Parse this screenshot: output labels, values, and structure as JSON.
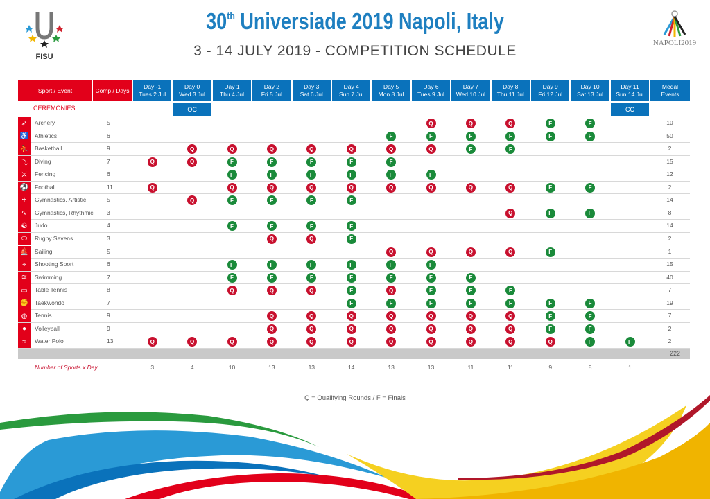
{
  "header": {
    "title_ordinal": "30",
    "title_suffix": "th",
    "title_rest": " Universiade 2019 Napoli, Italy",
    "subtitle": "3 - 14 JULY 2019 - COMPETITION SCHEDULE",
    "fisu_logo_text": "FISU",
    "napoli_logo_text": "NAPOLI2019"
  },
  "colors": {
    "red": "#e2001a",
    "blue": "#0a72bb",
    "qualifying": "#c8102e",
    "finals": "#1a8a3a"
  },
  "table": {
    "sport_header": "Sport / Event",
    "comp_header": "Comp / Days",
    "medal_header_line1": "Medal",
    "medal_header_line2": "Events",
    "days": [
      {
        "day": "Day -1",
        "date": "Tues 2 Jul"
      },
      {
        "day": "Day 0",
        "date": "Wed 3 Jul"
      },
      {
        "day": "Day 1",
        "date": "Thu 4 Jul"
      },
      {
        "day": "Day 2",
        "date": "Fri 5 Jul"
      },
      {
        "day": "Day 3",
        "date": "Sat 6 Jul"
      },
      {
        "day": "Day 4",
        "date": "Sun 7 Jul"
      },
      {
        "day": "Day 5",
        "date": "Mon 8 Jul"
      },
      {
        "day": "Day 6",
        "date": "Tues 9 Jul"
      },
      {
        "day": "Day 7",
        "date": "Wed 10 Jul"
      },
      {
        "day": "Day 8",
        "date": "Thu 11 Jul"
      },
      {
        "day": "Day 9",
        "date": "Fri 12 Jul"
      },
      {
        "day": "Day 10",
        "date": "Sat 13 Jul"
      },
      {
        "day": "Day 11",
        "date": "Sun 14 Jul"
      }
    ],
    "ceremonies": {
      "label": "CEREMONIES",
      "opening": {
        "label": "OC",
        "day_index": 1
      },
      "closing": {
        "label": "CC",
        "day_index": 12
      }
    },
    "sports": [
      {
        "name": "Archery",
        "icon": "archery-icon",
        "comp_days": "5",
        "medal_events": "10",
        "schedule": [
          "",
          "",
          "",
          "",
          "",
          "",
          "",
          "Q",
          "Q",
          "Q",
          "F",
          "F",
          ""
        ]
      },
      {
        "name": "Athletics",
        "icon": "athletics-icon",
        "comp_days": "6",
        "medal_events": "50",
        "schedule": [
          "",
          "",
          "",
          "",
          "",
          "",
          "F",
          "F",
          "F",
          "F",
          "F",
          "F",
          ""
        ]
      },
      {
        "name": "Basketball",
        "icon": "basketball-icon",
        "comp_days": "9",
        "medal_events": "2",
        "schedule": [
          "",
          "Q",
          "Q",
          "Q",
          "Q",
          "Q",
          "Q",
          "Q",
          "F",
          "F",
          "",
          "",
          ""
        ]
      },
      {
        "name": "Diving",
        "icon": "diving-icon",
        "comp_days": "7",
        "medal_events": "15",
        "schedule": [
          "Q",
          "Q",
          "F",
          "F",
          "F",
          "F",
          "F",
          "",
          "",
          "",
          "",
          "",
          ""
        ]
      },
      {
        "name": "Fencing",
        "icon": "fencing-icon",
        "comp_days": "6",
        "medal_events": "12",
        "schedule": [
          "",
          "",
          "F",
          "F",
          "F",
          "F",
          "F",
          "F",
          "",
          "",
          "",
          "",
          ""
        ]
      },
      {
        "name": "Football",
        "icon": "football-icon",
        "comp_days": "11",
        "medal_events": "2",
        "schedule": [
          "Q",
          "",
          "Q",
          "Q",
          "Q",
          "Q",
          "Q",
          "Q",
          "Q",
          "Q",
          "F",
          "F",
          ""
        ]
      },
      {
        "name": "Gymnastics, Artistic",
        "icon": "gymnastics-artistic-icon",
        "comp_days": "5",
        "medal_events": "14",
        "schedule": [
          "",
          "Q",
          "F",
          "F",
          "F",
          "F",
          "",
          "",
          "",
          "",
          "",
          "",
          ""
        ]
      },
      {
        "name": "Gymnastics, Rhythmic",
        "icon": "gymnastics-rhythmic-icon",
        "comp_days": "3",
        "medal_events": "8",
        "schedule": [
          "",
          "",
          "",
          "",
          "",
          "",
          "",
          "",
          "",
          "Q",
          "F",
          "F",
          ""
        ]
      },
      {
        "name": "Judo",
        "icon": "judo-icon",
        "comp_days": "4",
        "medal_events": "14",
        "schedule": [
          "",
          "",
          "F",
          "F",
          "F",
          "F",
          "",
          "",
          "",
          "",
          "",
          "",
          ""
        ]
      },
      {
        "name": "Rugby Sevens",
        "icon": "rugby-icon",
        "comp_days": "3",
        "medal_events": "2",
        "schedule": [
          "",
          "",
          "",
          "Q",
          "Q",
          "F",
          "",
          "",
          "",
          "",
          "",
          "",
          ""
        ]
      },
      {
        "name": "Sailing",
        "icon": "sailing-icon",
        "comp_days": "5",
        "medal_events": "1",
        "schedule": [
          "",
          "",
          "",
          "",
          "",
          "",
          "Q",
          "Q",
          "Q",
          "Q",
          "F",
          "",
          ""
        ]
      },
      {
        "name": "Shooting Sport",
        "icon": "shooting-icon",
        "comp_days": "6",
        "medal_events": "15",
        "schedule": [
          "",
          "",
          "F",
          "F",
          "F",
          "F",
          "F",
          "F",
          "",
          "",
          "",
          "",
          ""
        ]
      },
      {
        "name": "Swimming",
        "icon": "swimming-icon",
        "comp_days": "7",
        "medal_events": "40",
        "schedule": [
          "",
          "",
          "F",
          "F",
          "F",
          "F",
          "F",
          "F",
          "F",
          "",
          "",
          "",
          ""
        ]
      },
      {
        "name": "Table Tennis",
        "icon": "table-tennis-icon",
        "comp_days": "8",
        "medal_events": "7",
        "schedule": [
          "",
          "",
          "Q",
          "Q",
          "Q",
          "F",
          "Q",
          "F",
          "F",
          "F",
          "",
          "",
          ""
        ]
      },
      {
        "name": "Taekwondo",
        "icon": "taekwondo-icon",
        "comp_days": "7",
        "medal_events": "19",
        "schedule": [
          "",
          "",
          "",
          "",
          "",
          "F",
          "F",
          "F",
          "F",
          "F",
          "F",
          "F",
          ""
        ]
      },
      {
        "name": "Tennis",
        "icon": "tennis-icon",
        "comp_days": "9",
        "medal_events": "7",
        "schedule": [
          "",
          "",
          "",
          "Q",
          "Q",
          "Q",
          "Q",
          "Q",
          "Q",
          "Q",
          "F",
          "F",
          ""
        ]
      },
      {
        "name": "Volleyball",
        "icon": "volleyball-icon",
        "comp_days": "9",
        "medal_events": "2",
        "schedule": [
          "",
          "",
          "",
          "Q",
          "Q",
          "Q",
          "Q",
          "Q",
          "Q",
          "Q",
          "F",
          "F",
          ""
        ]
      },
      {
        "name": "Water Polo",
        "icon": "water-polo-icon",
        "comp_days": "13",
        "medal_events": "2",
        "schedule": [
          "Q",
          "Q",
          "Q",
          "Q",
          "Q",
          "Q",
          "Q",
          "Q",
          "Q",
          "Q",
          "Q",
          "F",
          "F"
        ]
      }
    ],
    "total_medal_events": "222",
    "sports_per_day_label": "Number of Sports x Day",
    "sports_per_day": [
      "3",
      "4",
      "10",
      "13",
      "13",
      "14",
      "13",
      "13",
      "11",
      "11",
      "9",
      "8",
      "1"
    ]
  },
  "legend": "Q = Qualifying Rounds / F = Finals"
}
